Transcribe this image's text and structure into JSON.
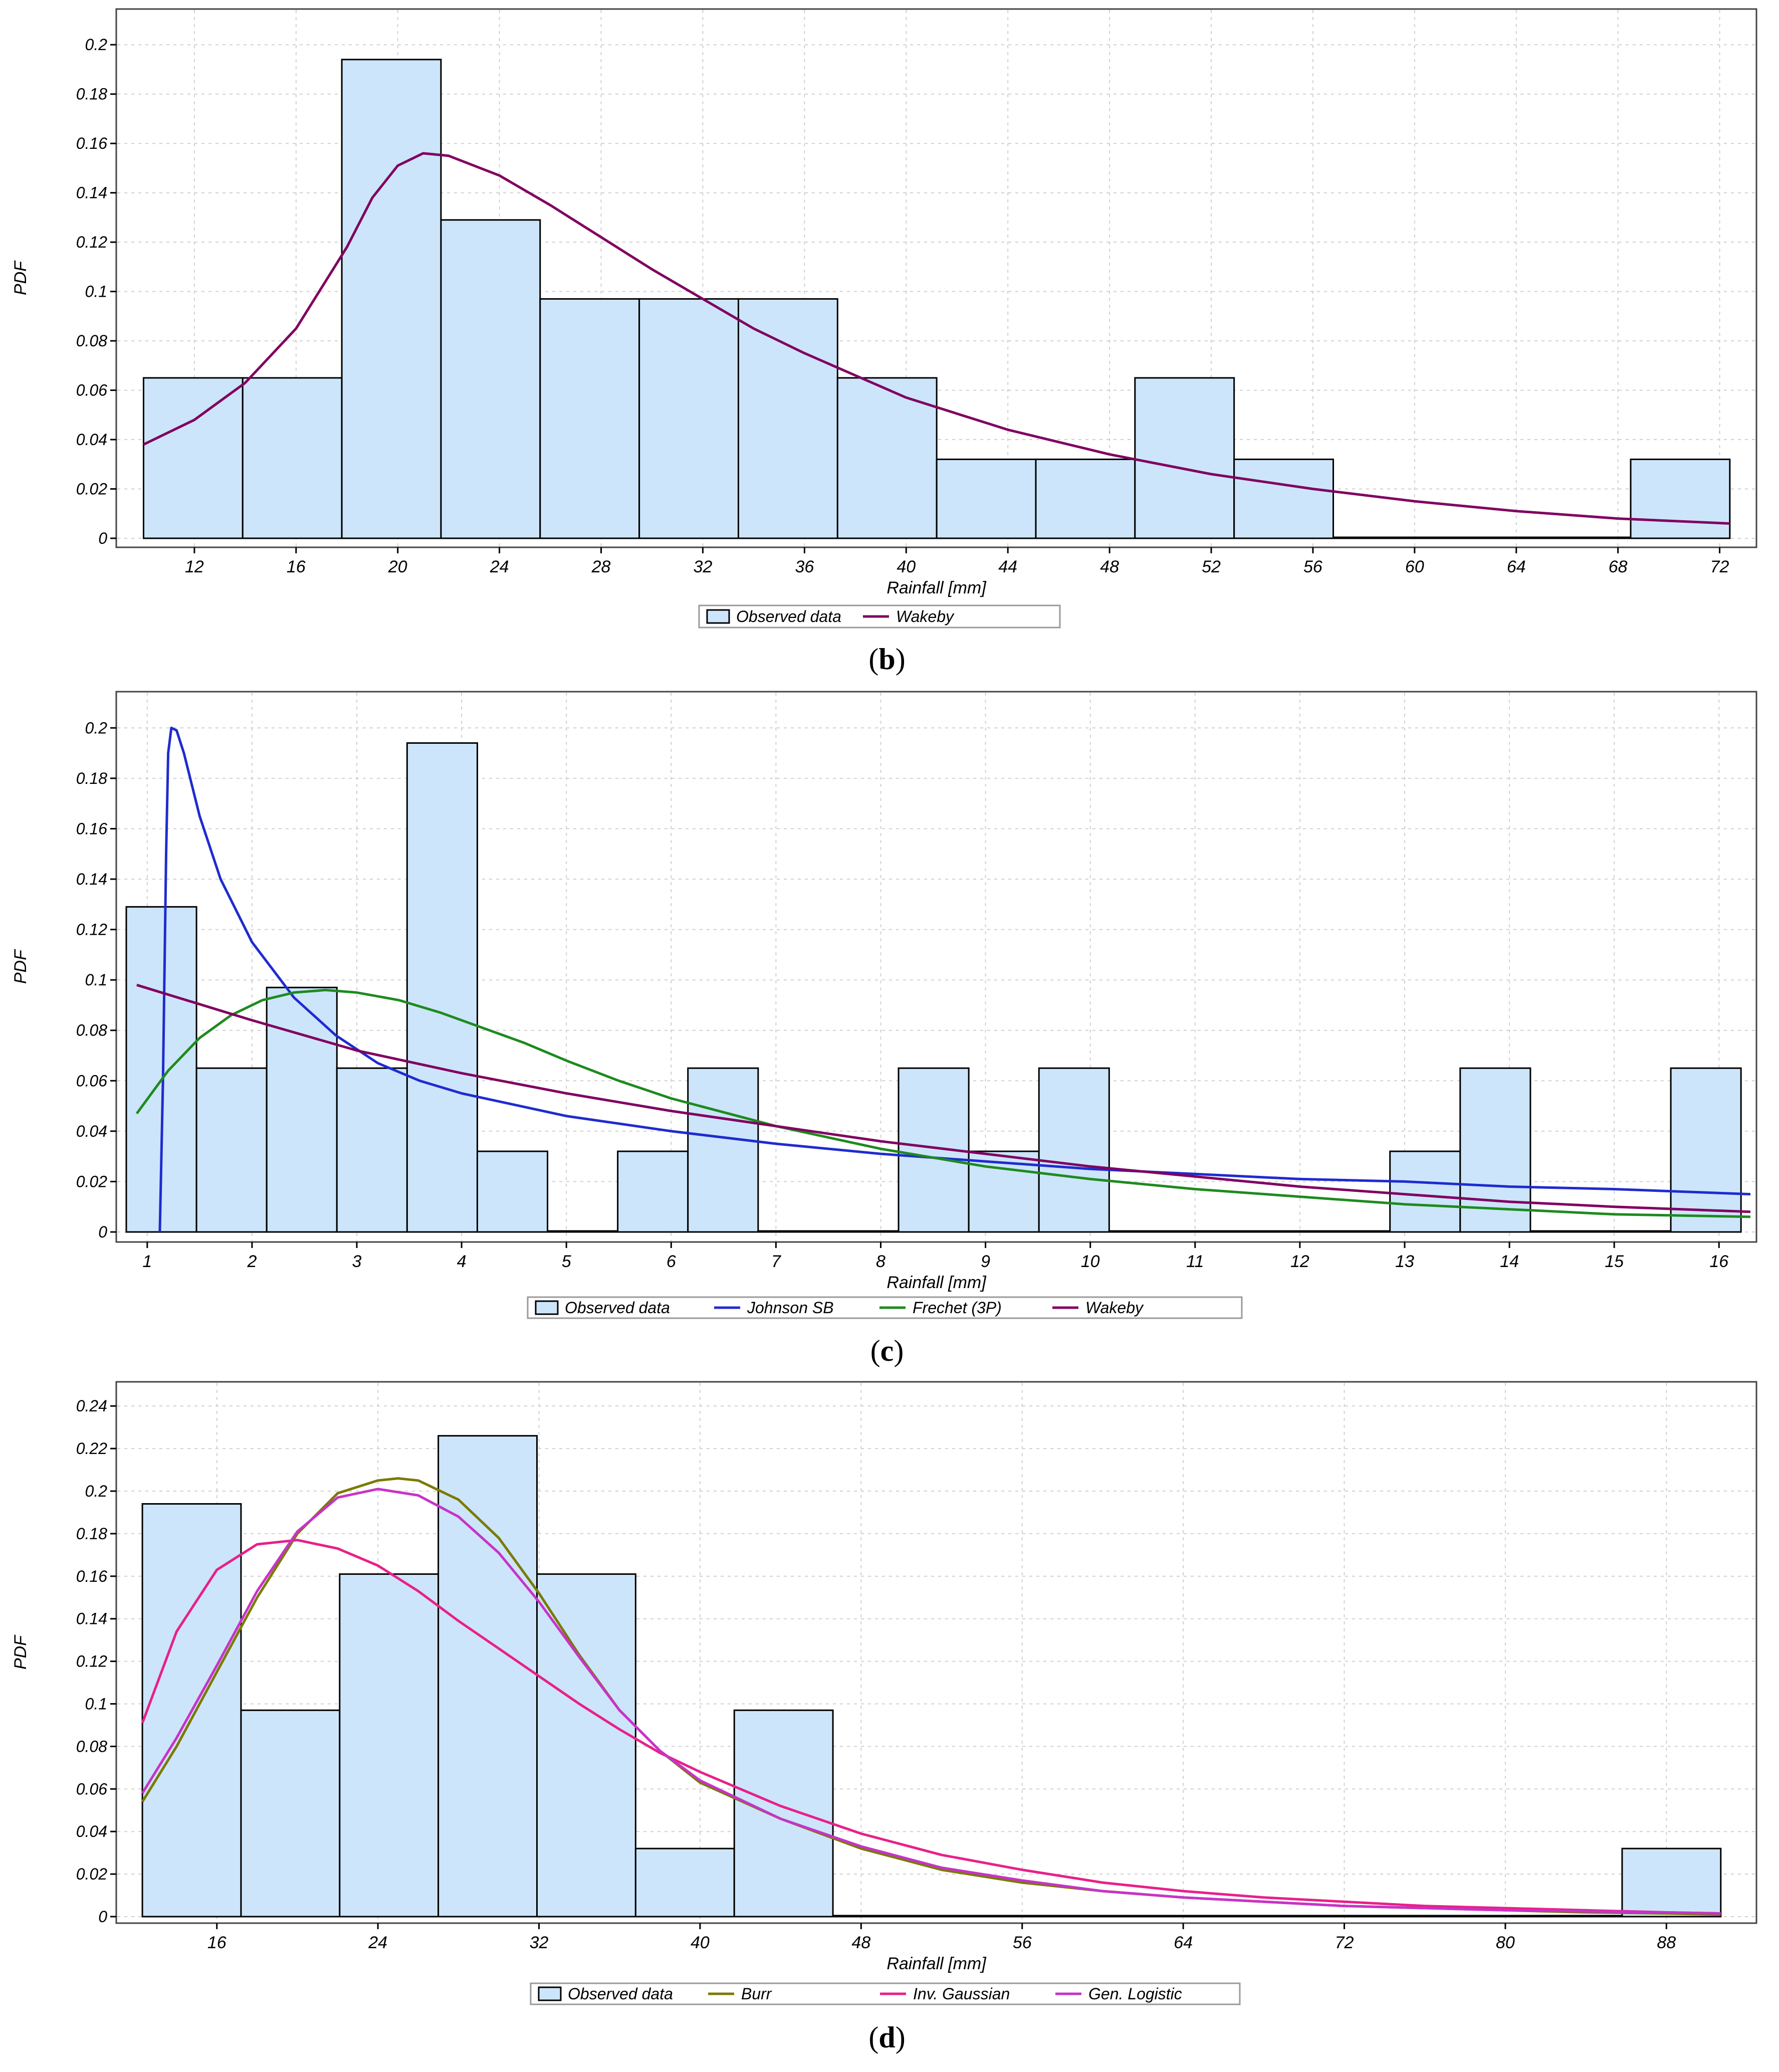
{
  "panels": [
    {
      "caption_letter": "b",
      "chart_data": {
        "type": "bar",
        "xlabel": "Rainfall [mm]",
        "ylabel": "PDF",
        "xlim": [
          9.4,
          72.6
        ],
        "ylim": [
          0,
          0.21
        ],
        "xticks": [
          12,
          16,
          20,
          24,
          28,
          32,
          36,
          40,
          44,
          48,
          52,
          56,
          60,
          64,
          68,
          72
        ],
        "xtick_labels": [
          "12",
          "16",
          "20",
          "24",
          "28",
          "32",
          "36",
          "40",
          "44",
          "48",
          "52",
          "56",
          "60",
          "64",
          "68",
          "72"
        ],
        "yticks": [
          0,
          0.02,
          0.04,
          0.06,
          0.08,
          0.1,
          0.12,
          0.14,
          0.16,
          0.18,
          0.2
        ],
        "ytick_labels": [
          "0",
          "0.02",
          "0.04",
          "0.06",
          "0.08",
          "0.1",
          "0.12",
          "0.14",
          "0.16",
          "0.18",
          "0.2"
        ],
        "grid": true,
        "histogram": {
          "name": "Observed data",
          "color": "#cce5fa",
          "bins": [
            {
              "from": 10.0,
              "to": 13.9,
              "value": 0.065
            },
            {
              "from": 13.9,
              "to": 17.8,
              "value": 0.065
            },
            {
              "from": 17.8,
              "to": 21.7,
              "value": 0.194
            },
            {
              "from": 21.7,
              "to": 25.6,
              "value": 0.129
            },
            {
              "from": 25.6,
              "to": 29.5,
              "value": 0.097
            },
            {
              "from": 29.5,
              "to": 33.4,
              "value": 0.097
            },
            {
              "from": 33.4,
              "to": 37.3,
              "value": 0.097
            },
            {
              "from": 37.3,
              "to": 41.2,
              "value": 0.065
            },
            {
              "from": 41.2,
              "to": 45.1,
              "value": 0.032
            },
            {
              "from": 45.1,
              "to": 49.0,
              "value": 0.032
            },
            {
              "from": 49.0,
              "to": 52.9,
              "value": 0.065
            },
            {
              "from": 52.9,
              "to": 56.8,
              "value": 0.032
            },
            {
              "from": 56.8,
              "to": 60.7,
              "value": 0.0
            },
            {
              "from": 60.7,
              "to": 64.6,
              "value": 0.0
            },
            {
              "from": 64.6,
              "to": 68.5,
              "value": 0.0
            },
            {
              "from": 68.5,
              "to": 72.4,
              "value": 0.032
            }
          ]
        },
        "series": [
          {
            "name": "Wakeby",
            "color": "#800060",
            "x": [
              10,
              12,
              14,
              16,
              18,
              19,
              20,
              21,
              22,
              24,
              26,
              28,
              30,
              32,
              34,
              36,
              38,
              40,
              44,
              48,
              52,
              56,
              60,
              64,
              68,
              72.4
            ],
            "y": [
              0.038,
              0.048,
              0.063,
              0.085,
              0.118,
              0.138,
              0.151,
              0.156,
              0.155,
              0.147,
              0.135,
              0.122,
              0.109,
              0.097,
              0.085,
              0.075,
              0.066,
              0.057,
              0.044,
              0.034,
              0.026,
              0.02,
              0.015,
              0.011,
              0.008,
              0.006
            ]
          }
        ],
        "legend": [
          "Observed data",
          "Wakeby"
        ],
        "legend_position": "bottom-center"
      }
    },
    {
      "caption_letter": "c",
      "chart_data": {
        "type": "bar",
        "xlabel": "Rainfall [mm]",
        "ylabel": "PDF",
        "xlim": [
          0.8,
          16.3
        ],
        "ylim": [
          0,
          0.21
        ],
        "xticks": [
          1,
          2,
          3,
          4,
          5,
          6,
          7,
          8,
          9,
          10,
          11,
          12,
          13,
          14,
          15,
          16
        ],
        "xtick_labels": [
          "1",
          "2",
          "3",
          "4",
          "5",
          "6",
          "7",
          "8",
          "9",
          "10",
          "11",
          "12",
          "13",
          "14",
          "15",
          "16"
        ],
        "yticks": [
          0,
          0.02,
          0.04,
          0.06,
          0.08,
          0.1,
          0.12,
          0.14,
          0.16,
          0.18,
          0.2
        ],
        "ytick_labels": [
          "0",
          "0.02",
          "0.04",
          "0.06",
          "0.08",
          "0.1",
          "0.12",
          "0.14",
          "0.16",
          "0.18",
          "0.2"
        ],
        "grid": true,
        "histogram": {
          "name": "Observed data",
          "color": "#cce5fa",
          "bins": [
            {
              "from": 0.8,
              "to": 1.47,
              "value": 0.129
            },
            {
              "from": 1.47,
              "to": 2.14,
              "value": 0.065
            },
            {
              "from": 2.14,
              "to": 2.81,
              "value": 0.097
            },
            {
              "from": 2.81,
              "to": 3.48,
              "value": 0.065
            },
            {
              "from": 3.48,
              "to": 4.15,
              "value": 0.194
            },
            {
              "from": 4.15,
              "to": 4.82,
              "value": 0.032
            },
            {
              "from": 4.82,
              "to": 5.49,
              "value": 0.0
            },
            {
              "from": 5.49,
              "to": 6.16,
              "value": 0.032
            },
            {
              "from": 6.16,
              "to": 6.83,
              "value": 0.065
            },
            {
              "from": 6.83,
              "to": 7.5,
              "value": 0.0
            },
            {
              "from": 7.5,
              "to": 8.17,
              "value": 0.0
            },
            {
              "from": 8.17,
              "to": 8.84,
              "value": 0.065
            },
            {
              "from": 8.84,
              "to": 9.51,
              "value": 0.032
            },
            {
              "from": 9.51,
              "to": 10.18,
              "value": 0.065
            },
            {
              "from": 10.18,
              "to": 10.85,
              "value": 0.0
            },
            {
              "from": 10.85,
              "to": 11.52,
              "value": 0.0
            },
            {
              "from": 11.52,
              "to": 12.19,
              "value": 0.0
            },
            {
              "from": 12.19,
              "to": 12.86,
              "value": 0.0
            },
            {
              "from": 12.86,
              "to": 13.53,
              "value": 0.032
            },
            {
              "from": 13.53,
              "to": 14.2,
              "value": 0.065
            },
            {
              "from": 14.2,
              "to": 14.87,
              "value": 0.0
            },
            {
              "from": 14.87,
              "to": 15.54,
              "value": 0.0
            },
            {
              "from": 15.54,
              "to": 16.21,
              "value": 0.065
            }
          ]
        },
        "series": [
          {
            "name": "Johnson SB",
            "color": "#1f2bd0",
            "x": [
              1.12,
              1.15,
              1.18,
              1.2,
              1.23,
              1.28,
              1.35,
              1.5,
              1.7,
              2.0,
              2.4,
              2.8,
              3.2,
              3.6,
              4.0,
              5.0,
              6.0,
              7.0,
              8.0,
              9.0,
              10.0,
              11.0,
              12.0,
              13.0,
              14.0,
              15.0,
              16.3
            ],
            "y": [
              0.0,
              0.06,
              0.15,
              0.19,
              0.2,
              0.199,
              0.19,
              0.165,
              0.14,
              0.115,
              0.093,
              0.078,
              0.067,
              0.06,
              0.055,
              0.046,
              0.04,
              0.035,
              0.031,
              0.028,
              0.025,
              0.023,
              0.021,
              0.02,
              0.018,
              0.017,
              0.015
            ]
          },
          {
            "name": "Frechet (3P)",
            "color": "#1e8a1e",
            "x": [
              0.9,
              1.2,
              1.5,
              1.8,
              2.1,
              2.4,
              2.7,
              3.0,
              3.4,
              3.8,
              4.2,
              4.6,
              5.0,
              5.5,
              6.0,
              7.0,
              8.0,
              9.0,
              10.0,
              11.0,
              12.0,
              13.0,
              14.0,
              15.0,
              16.3
            ],
            "y": [
              0.047,
              0.064,
              0.077,
              0.086,
              0.092,
              0.095,
              0.096,
              0.095,
              0.092,
              0.087,
              0.081,
              0.075,
              0.068,
              0.06,
              0.053,
              0.042,
              0.033,
              0.026,
              0.021,
              0.017,
              0.014,
              0.011,
              0.009,
              0.007,
              0.006
            ]
          },
          {
            "name": "Wakeby",
            "color": "#800060",
            "x": [
              0.9,
              2,
              3,
              4,
              5,
              6,
              7,
              8,
              9,
              10,
              11,
              12,
              13,
              14,
              15,
              16.3
            ],
            "y": [
              0.098,
              0.084,
              0.072,
              0.063,
              0.055,
              0.048,
              0.042,
              0.036,
              0.031,
              0.026,
              0.022,
              0.018,
              0.015,
              0.012,
              0.01,
              0.008
            ]
          }
        ],
        "legend": [
          "Observed data",
          "Johnson SB",
          "Frechet (3P)",
          "Wakeby"
        ],
        "legend_position": "bottom-center"
      }
    },
    {
      "caption_letter": "d",
      "chart_data": {
        "type": "bar",
        "xlabel": "Rainfall [mm]",
        "ylabel": "PDF",
        "xlim": [
          11.8,
          91.8
        ],
        "ylim": [
          0,
          0.245
        ],
        "xticks": [
          16,
          24,
          32,
          40,
          48,
          56,
          64,
          72,
          80,
          88
        ],
        "xtick_labels": [
          "16",
          "24",
          "32",
          "40",
          "48",
          "56",
          "64",
          "72",
          "80",
          "88"
        ],
        "yticks": [
          0,
          0.02,
          0.04,
          0.06,
          0.08,
          0.1,
          0.12,
          0.14,
          0.16,
          0.18,
          0.2,
          0.22,
          0.24
        ],
        "ytick_labels": [
          "0",
          "0.02",
          "0.04",
          "0.06",
          "0.08",
          "0.1",
          "0.12",
          "0.14",
          "0.16",
          "0.18",
          "0.2",
          "0.22",
          "0.24"
        ],
        "grid": true,
        "histogram": {
          "name": "Observed data",
          "color": "#cce5fa",
          "bins": [
            {
              "from": 12.3,
              "to": 17.2,
              "value": 0.194
            },
            {
              "from": 17.2,
              "to": 22.1,
              "value": 0.097
            },
            {
              "from": 22.1,
              "to": 27.0,
              "value": 0.161
            },
            {
              "from": 27.0,
              "to": 31.9,
              "value": 0.226
            },
            {
              "from": 31.9,
              "to": 36.8,
              "value": 0.161
            },
            {
              "from": 36.8,
              "to": 41.7,
              "value": 0.032
            },
            {
              "from": 41.7,
              "to": 46.6,
              "value": 0.097
            },
            {
              "from": 46.6,
              "to": 51.5,
              "value": 0.0
            },
            {
              "from": 51.5,
              "to": 56.4,
              "value": 0.0
            },
            {
              "from": 56.4,
              "to": 61.3,
              "value": 0.0
            },
            {
              "from": 61.3,
              "to": 66.2,
              "value": 0.0
            },
            {
              "from": 66.2,
              "to": 71.1,
              "value": 0.0
            },
            {
              "from": 71.1,
              "to": 76.0,
              "value": 0.0
            },
            {
              "from": 76.0,
              "to": 80.9,
              "value": 0.0
            },
            {
              "from": 80.9,
              "to": 85.8,
              "value": 0.0
            },
            {
              "from": 85.8,
              "to": 90.7,
              "value": 0.032
            }
          ]
        },
        "series": [
          {
            "name": "Burr",
            "color": "#7a7a00",
            "x": [
              12.3,
              14,
              16,
              18,
              20,
              22,
              24,
              25,
              26,
              28,
              30,
              32,
              34,
              36,
              38,
              40,
              44,
              48,
              52,
              56,
              60,
              64,
              68,
              72,
              76,
              80,
              84,
              88,
              90.7
            ],
            "y": [
              0.054,
              0.08,
              0.115,
              0.15,
              0.18,
              0.199,
              0.205,
              0.206,
              0.205,
              0.196,
              0.178,
              0.152,
              0.123,
              0.097,
              0.078,
              0.063,
              0.046,
              0.032,
              0.022,
              0.016,
              0.012,
              0.009,
              0.007,
              0.005,
              0.004,
              0.003,
              0.002,
              0.0015,
              0.001
            ]
          },
          {
            "name": "Inv. Gaussian",
            "color": "#e8208a",
            "x": [
              12.3,
              14,
              16,
              18,
              20,
              22,
              24,
              26,
              28,
              30,
              32,
              34,
              36,
              38,
              40,
              44,
              48,
              52,
              56,
              60,
              64,
              68,
              72,
              76,
              80,
              84,
              88,
              90.7
            ],
            "y": [
              0.091,
              0.134,
              0.163,
              0.175,
              0.177,
              0.173,
              0.165,
              0.153,
              0.139,
              0.126,
              0.113,
              0.1,
              0.088,
              0.077,
              0.068,
              0.052,
              0.039,
              0.029,
              0.022,
              0.016,
              0.012,
              0.009,
              0.007,
              0.005,
              0.004,
              0.003,
              0.002,
              0.0015
            ]
          },
          {
            "name": "Gen. Logistic",
            "color": "#c832c8",
            "x": [
              12.3,
              14,
              16,
              18,
              20,
              22,
              24,
              26,
              28,
              30,
              32,
              34,
              36,
              38,
              40,
              44,
              48,
              52,
              56,
              60,
              64,
              68,
              72,
              76,
              80,
              84,
              88,
              90.7
            ],
            "y": [
              0.058,
              0.084,
              0.118,
              0.153,
              0.181,
              0.197,
              0.201,
              0.198,
              0.188,
              0.171,
              0.148,
              0.122,
              0.097,
              0.078,
              0.064,
              0.046,
              0.033,
              0.023,
              0.017,
              0.012,
              0.009,
              0.007,
              0.005,
              0.004,
              0.003,
              0.0025,
              0.002,
              0.0015
            ]
          }
        ],
        "legend": [
          "Observed data",
          "Burr",
          "Inv. Gaussian",
          "Gen. Logistic"
        ],
        "legend_position": "bottom-center"
      }
    }
  ]
}
